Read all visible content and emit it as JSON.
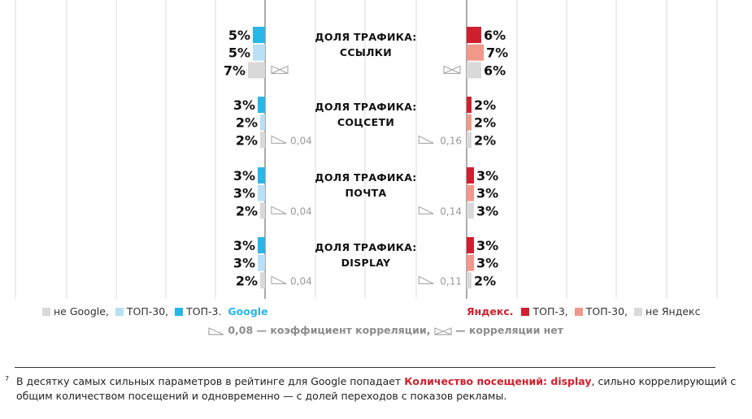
{
  "chart_data": {
    "type": "bar",
    "layout": "mirrored-horizontal",
    "categories": [
      {
        "line1": "ДОЛЯ ТРАФИКА:",
        "line2": "ССЫЛКИ"
      },
      {
        "line1": "ДОЛЯ ТРАФИКА:",
        "line2": "СОЦСЕТИ"
      },
      {
        "line1": "ДОЛЯ ТРАФИКА:",
        "line2": "ПОЧТА"
      },
      {
        "line1": "ДОЛЯ ТРАФИКА:",
        "line2": "DISPLAY"
      }
    ],
    "google": {
      "series": [
        {
          "name": "ТОП-3.",
          "color": "#29b6e8",
          "values": [
            5,
            3,
            3,
            3
          ],
          "labels": [
            "5%",
            "3%",
            "3%",
            "3%"
          ]
        },
        {
          "name": "ТОП-30,",
          "color": "#b9e0f7",
          "values": [
            5,
            2,
            3,
            3
          ],
          "labels": [
            "5%",
            "2%",
            "3%",
            "3%"
          ]
        },
        {
          "name": "не Google,",
          "color": "#d9d9d9",
          "values": [
            7,
            2,
            2,
            2
          ],
          "labels": [
            "7%",
            "2%",
            "2%",
            "2%"
          ]
        }
      ],
      "correlation": [
        null,
        "0,04",
        "0,04",
        "0,04"
      ]
    },
    "yandex": {
      "series": [
        {
          "name": "ТОП-3,",
          "color": "#d0202d",
          "values": [
            6,
            2,
            3,
            3
          ],
          "labels": [
            "6%",
            "2%",
            "3%",
            "3%"
          ]
        },
        {
          "name": "ТОП-30,",
          "color": "#f0998b",
          "values": [
            7,
            2,
            3,
            3
          ],
          "labels": [
            "7%",
            "2%",
            "3%",
            "3%"
          ]
        },
        {
          "name": "не Яндекс",
          "color": "#d9d9d9",
          "values": [
            6,
            2,
            3,
            2
          ],
          "labels": [
            "6%",
            "2%",
            "3%",
            "2%"
          ]
        }
      ],
      "correlation": [
        null,
        "0,16",
        "0,14",
        "0,11"
      ]
    },
    "grid": true
  },
  "legend": {
    "google": {
      "items": [
        {
          "label": "не Google,",
          "color": "#d9d9d9"
        },
        {
          "label": "ТОП-30,",
          "color": "#b9e0f7"
        },
        {
          "label": "ТОП-3.",
          "color": "#29b6e8"
        }
      ],
      "brand": "Google"
    },
    "yandex": {
      "brand": "Яндекс.",
      "items": [
        {
          "label": "ТОП-3,",
          "color": "#d0202d"
        },
        {
          "label": "ТОП-30,",
          "color": "#f0998b"
        },
        {
          "label": "не Яндекс",
          "color": "#d9d9d9"
        }
      ]
    },
    "correlation_note": "0,08 — коэффициент корреляции,",
    "no_correlation_note": "— корреляции нет"
  },
  "footnote": {
    "number": "7",
    "text_before": "В десятку самых сильных параметров в рейтинге для Google попадает ",
    "highlight": "Количество посещений: display",
    "text_after": ", сильно коррелирующий с общим количеством посещений и одновременно — с долей переходов с показов рекламы."
  }
}
